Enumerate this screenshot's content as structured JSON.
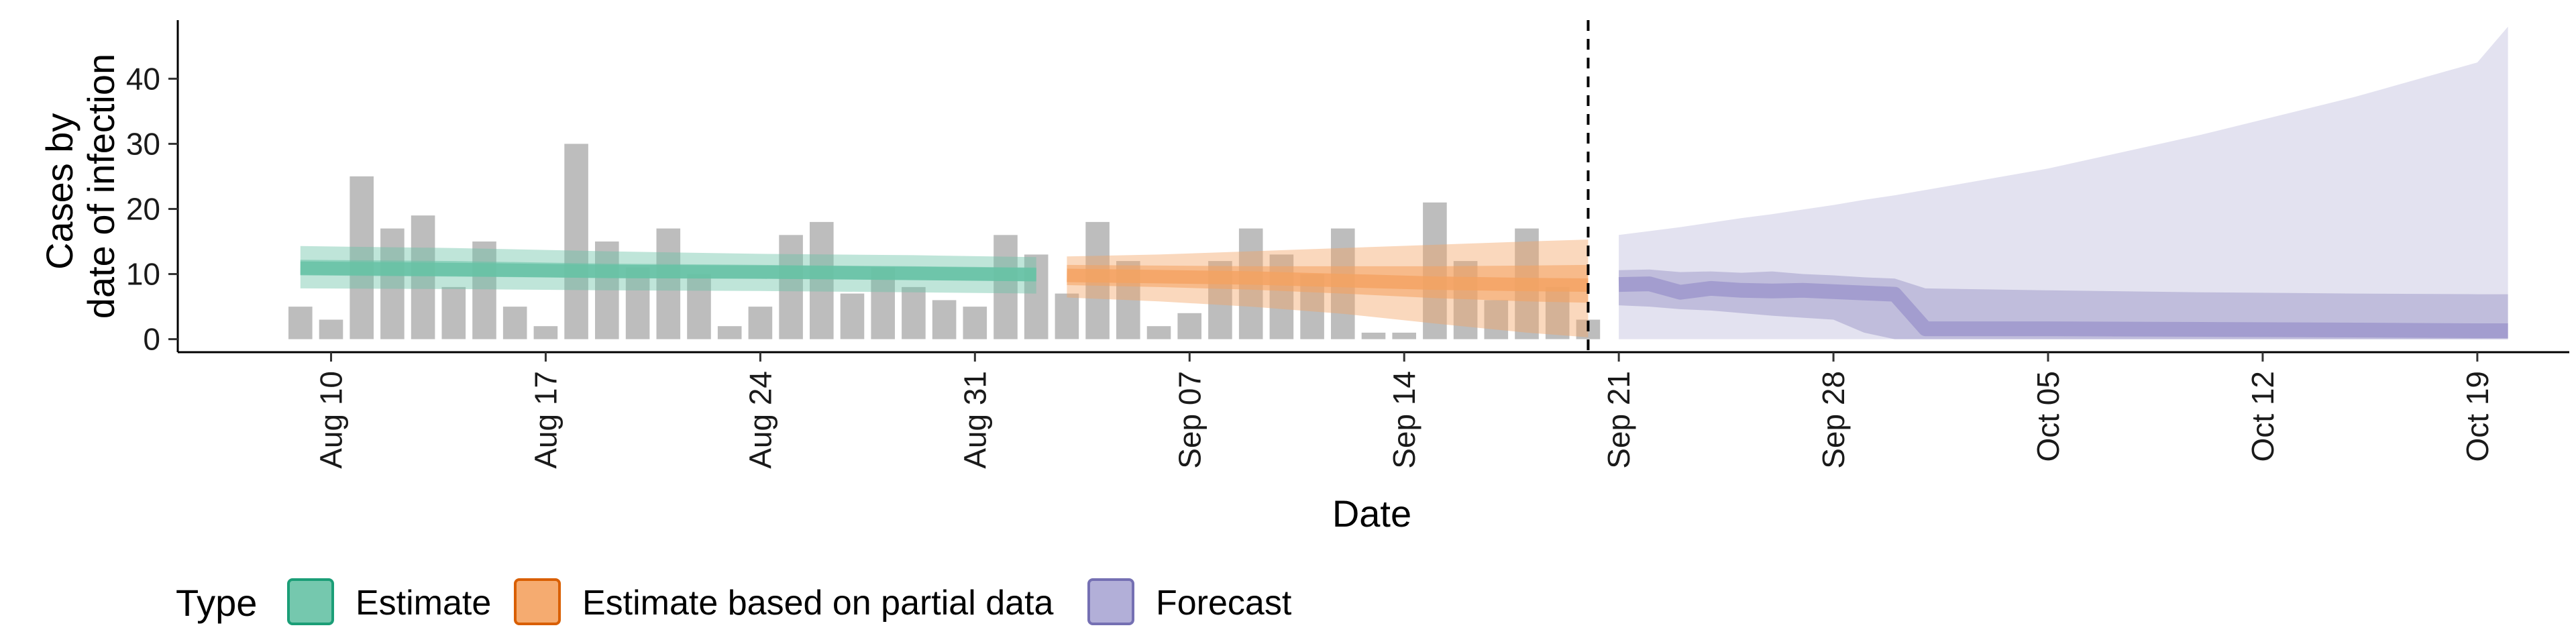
{
  "chart_data": {
    "type": "bar",
    "xlabel": "Date",
    "ylabel_lines": [
      "Cases by",
      "date of infection"
    ],
    "xlim": [
      "2020-08-05",
      "2020-10-22"
    ],
    "ylim": [
      -2,
      49
    ],
    "grid": false,
    "y_ticks": [
      0,
      10,
      20,
      30,
      40
    ],
    "x_ticks": [
      {
        "date": "2020-08-10",
        "label": "Aug 10"
      },
      {
        "date": "2020-08-17",
        "label": "Aug 17"
      },
      {
        "date": "2020-08-24",
        "label": "Aug 24"
      },
      {
        "date": "2020-08-31",
        "label": "Aug 31"
      },
      {
        "date": "2020-09-07",
        "label": "Sep 07"
      },
      {
        "date": "2020-09-14",
        "label": "Sep 14"
      },
      {
        "date": "2020-09-21",
        "label": "Sep 21"
      },
      {
        "date": "2020-09-28",
        "label": "Sep 28"
      },
      {
        "date": "2020-10-05",
        "label": "Oct 05"
      },
      {
        "date": "2020-10-12",
        "label": "Oct 12"
      },
      {
        "date": "2020-10-19",
        "label": "Oct 19"
      }
    ],
    "reference_line_date": "2020-09-20",
    "bars": {
      "start_date": "2020-08-09",
      "color": "#bdbdbd",
      "values": [
        5,
        3,
        25,
        17,
        19,
        8,
        15,
        5,
        2,
        30,
        15,
        11,
        17,
        10,
        2,
        5,
        16,
        18,
        7,
        11,
        8,
        6,
        5,
        16,
        13,
        7,
        18,
        12,
        2,
        4,
        12,
        17,
        13,
        10,
        17,
        1,
        1,
        21,
        12,
        6,
        17,
        8,
        3
      ]
    },
    "series": [
      {
        "name": "Estimate",
        "color": "#1b9e77",
        "fill": "#66c2a5",
        "x": [
          "2020-08-09",
          "2020-08-14",
          "2020-08-19",
          "2020-08-24",
          "2020-08-29",
          "2020-09-02"
        ],
        "median": [
          10.9,
          10.7,
          10.4,
          10.3,
          10.1,
          9.9
        ],
        "lower_inner": [
          9.8,
          9.6,
          9.4,
          9.3,
          9.1,
          8.9
        ],
        "upper_inner": [
          12.2,
          12.0,
          11.6,
          11.4,
          11.2,
          11.0
        ],
        "lower_outer": [
          7.8,
          7.7,
          7.5,
          7.4,
          7.2,
          7.0
        ],
        "upper_outer": [
          14.3,
          14.0,
          13.5,
          13.1,
          12.9,
          12.6
        ]
      },
      {
        "name": "Estimate based on partial data",
        "color": "#d95f02",
        "fill": "#f4a261",
        "x": [
          "2020-09-03",
          "2020-09-06",
          "2020-09-09",
          "2020-09-12",
          "2020-09-15",
          "2020-09-18",
          "2020-09-20"
        ],
        "median": [
          9.8,
          9.6,
          9.4,
          9.0,
          8.6,
          8.4,
          8.3
        ],
        "lower_inner": [
          8.3,
          8.0,
          7.6,
          7.0,
          6.3,
          5.8,
          5.6
        ],
        "upper_inner": [
          11.4,
          11.3,
          11.2,
          11.2,
          11.2,
          11.3,
          11.4
        ],
        "lower_outer": [
          6.4,
          5.8,
          5.0,
          3.9,
          2.4,
          1.0,
          0.3
        ],
        "upper_outer": [
          12.7,
          13.0,
          13.5,
          14.0,
          14.5,
          15.0,
          15.3
        ]
      },
      {
        "name": "Forecast",
        "color": "#7570b3",
        "fill": "#c9c6e3",
        "x": [
          "2020-09-21",
          "2020-09-22",
          "2020-09-23",
          "2020-09-24",
          "2020-09-25",
          "2020-09-26",
          "2020-09-27",
          "2020-09-28",
          "2020-09-29",
          "2020-09-30",
          "2020-10-01",
          "2020-10-05",
          "2020-10-10",
          "2020-10-15",
          "2020-10-19",
          "2020-10-20"
        ],
        "median": [
          8.4,
          8.5,
          7.2,
          7.8,
          7.5,
          7.4,
          7.5,
          7.3,
          7.1,
          6.9,
          1.6,
          1.6,
          1.5,
          1.4,
          1.3,
          1.3
        ],
        "lower_inner": [
          5.2,
          5.0,
          4.6,
          4.4,
          4.0,
          3.6,
          3.3,
          3.0,
          1.0,
          0.0,
          0.0,
          0.0,
          0.0,
          0.0,
          0.0,
          0.0
        ],
        "upper_inner": [
          10.6,
          10.7,
          10.3,
          10.4,
          10.2,
          10.4,
          10.0,
          9.8,
          9.5,
          9.3,
          7.8,
          7.5,
          7.2,
          7.0,
          6.9,
          6.9
        ],
        "lower_outer": [
          0.0,
          0.0,
          0.0,
          0.0,
          0.0,
          0.0,
          0.0,
          0.0,
          0.0,
          0.0,
          0.0,
          0.0,
          0.0,
          0.0,
          0.0,
          0.0
        ],
        "upper_outer": [
          16.0,
          16.6,
          17.2,
          17.9,
          18.6,
          19.2,
          19.9,
          20.6,
          21.4,
          22.1,
          22.9,
          26.2,
          31.4,
          37.2,
          42.5,
          48.0
        ]
      }
    ],
    "legend": {
      "placement": "bottom",
      "title": "Type",
      "items": [
        {
          "label": "Estimate",
          "fill": "#66c2a5",
          "stroke": "#1b9e77"
        },
        {
          "label": "Estimate based on partial data",
          "fill": "#f4a261",
          "stroke": "#d95f02"
        },
        {
          "label": "Forecast",
          "fill": "#aaa6d4",
          "stroke": "#7570b3"
        }
      ]
    }
  }
}
